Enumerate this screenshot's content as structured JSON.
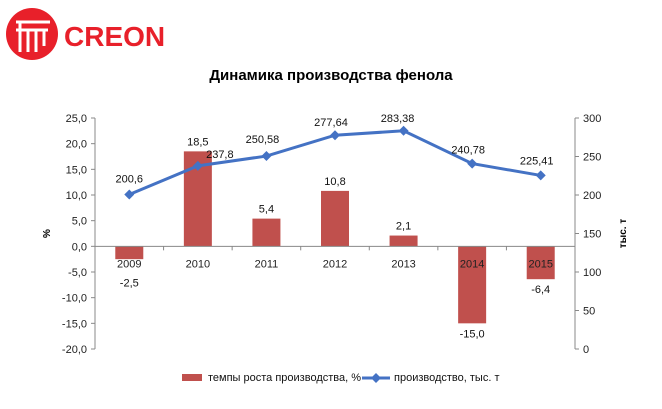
{
  "logo": {
    "text": "CREON",
    "color": "#e8202a"
  },
  "chart_data": {
    "type": "bar",
    "title": "Динамика производства фенола",
    "categories": [
      "2009",
      "2010",
      "2011",
      "2012",
      "2013",
      "2014",
      "2015"
    ],
    "series": [
      {
        "name": "темпы роста производства, %",
        "kind": "bar",
        "axis": "left",
        "color": "#c0504d",
        "values": [
          -2.5,
          18.5,
          5.4,
          10.8,
          2.1,
          -15.0,
          -6.4
        ],
        "labels": [
          "-2,5",
          "18,5",
          "5,4",
          "10,8",
          "2,1",
          "-15,0",
          "-6,4"
        ]
      },
      {
        "name": "производство, тыс. т",
        "kind": "line",
        "axis": "right",
        "color": "#4472c4",
        "values": [
          200.6,
          237.8,
          250.58,
          277.64,
          283.38,
          240.78,
          225.41
        ],
        "labels": [
          "200,6",
          "237,8",
          "250,58",
          "277,64",
          "283,38",
          "240,78",
          "225,41"
        ]
      }
    ],
    "y_left": {
      "label": "%",
      "ylim": [
        -20,
        25
      ],
      "ticks": [
        25,
        20,
        15,
        10,
        5,
        0,
        -5,
        -10,
        -15,
        -20
      ],
      "tick_labels": [
        "25,0",
        "20,0",
        "15,0",
        "10,0",
        "5,0",
        "0,0",
        "-5,0",
        "-10,0",
        "-15,0",
        "-20,0"
      ]
    },
    "y_right": {
      "label": "тыс. т",
      "ylim": [
        0,
        300
      ],
      "ticks": [
        300,
        250,
        200,
        150,
        100,
        50,
        0
      ],
      "tick_labels": [
        "300",
        "250",
        "200",
        "150",
        "100",
        "50",
        "0"
      ]
    },
    "legend_position": "bottom"
  }
}
